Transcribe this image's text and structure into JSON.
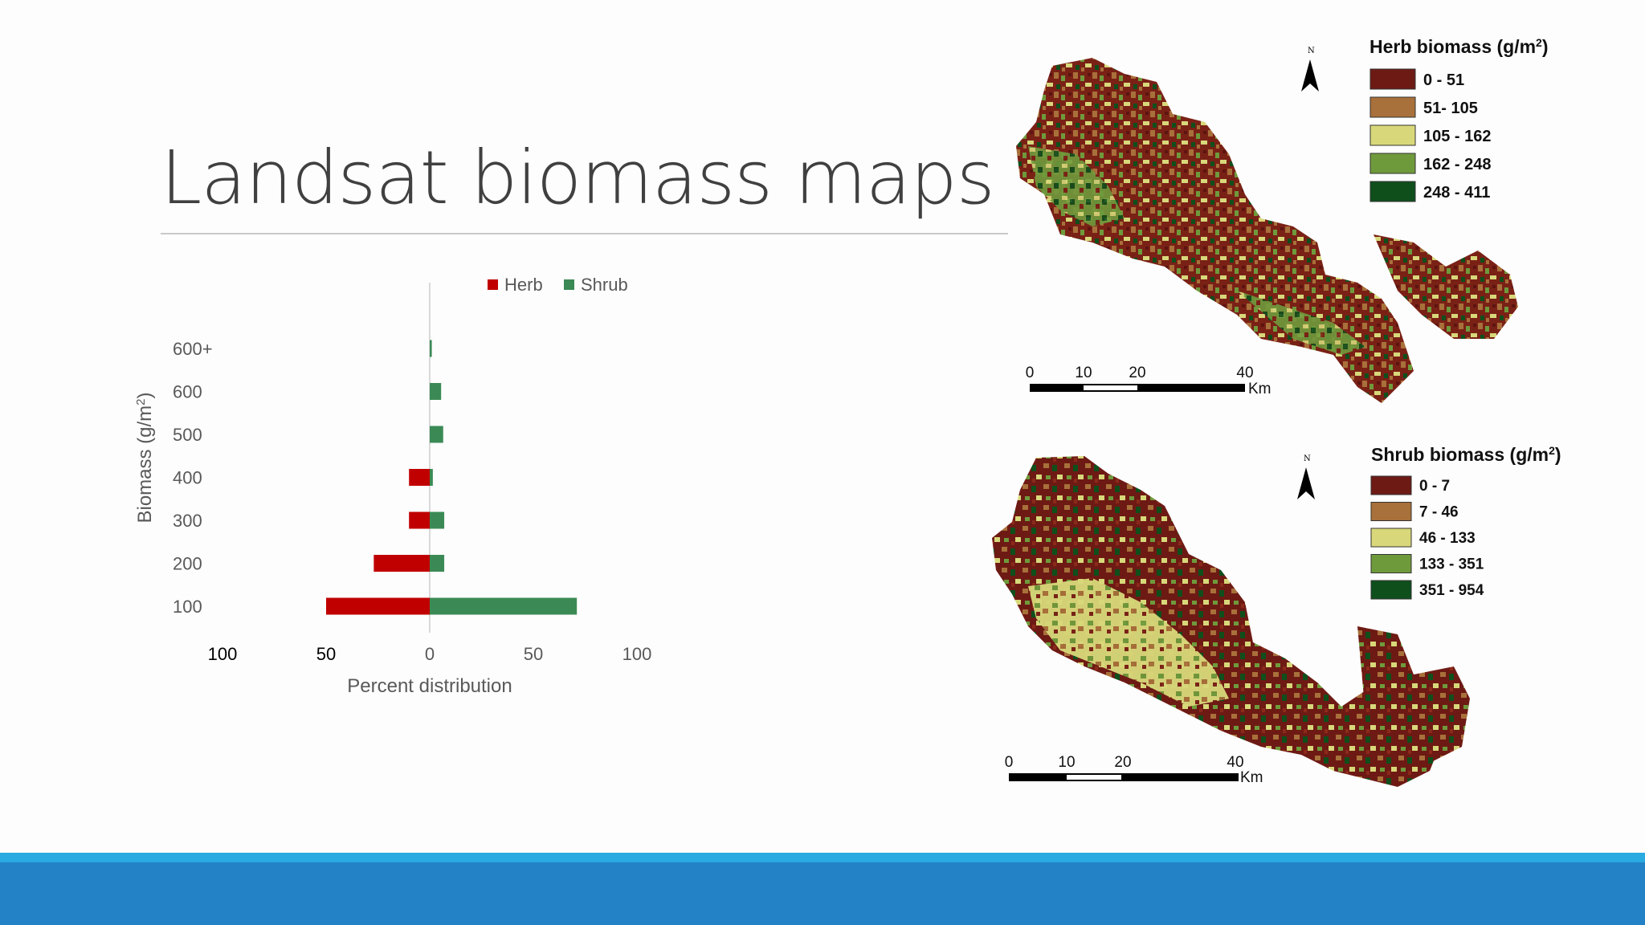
{
  "slide": {
    "title": "Landsat biomass maps",
    "colors": {
      "footer_light": "#29aae1",
      "footer_dark": "#2382c5",
      "herb": "#c00000",
      "shrub": "#3b8a55"
    }
  },
  "chart_data": {
    "type": "bar",
    "orientation": "horizontal-diverging",
    "categories": [
      "100",
      "200",
      "300",
      "400",
      "500",
      "600",
      "600+"
    ],
    "series": [
      {
        "name": "Herb",
        "color": "#c00000",
        "values": [
          50,
          27,
          10,
          10,
          0,
          0,
          0
        ]
      },
      {
        "name": "Shrub",
        "color": "#3b8a55",
        "values": [
          71,
          7,
          7,
          1.5,
          6.5,
          5.5,
          1
        ]
      }
    ],
    "xlabel": "Percent distribution",
    "ylabel": "Biomass (g/m",
    "ylabel_sup": "2",
    "ylabel_close": ")",
    "x_ticks": [
      "100",
      "50",
      "0",
      "50",
      "100"
    ],
    "xlim": [
      -100,
      100
    ],
    "legend_position": "top"
  },
  "maps": [
    {
      "legend_title": "Herb biomass (g/m",
      "legend_title_sup": "2",
      "legend_title_close": ")",
      "classes": [
        {
          "label": "0 - 51",
          "color": "#6e1a14"
        },
        {
          "label": "51- 105",
          "color": "#a8703a"
        },
        {
          "label": "105 - 162",
          "color": "#d8d87a"
        },
        {
          "label": "162 - 248",
          "color": "#6f9a3c"
        },
        {
          "label": "248 - 411",
          "color": "#0f4f1c"
        }
      ],
      "north": "N",
      "scale_labels": [
        "0",
        "10",
        "20",
        "40"
      ],
      "scale_unit": "Km"
    },
    {
      "legend_title": "Shrub biomass (g/m",
      "legend_title_sup": "2",
      "legend_title_close": ")",
      "classes": [
        {
          "label": "0 - 7",
          "color": "#6e1a14"
        },
        {
          "label": "7 - 46",
          "color": "#a8703a"
        },
        {
          "label": "46 - 133",
          "color": "#d8d87a"
        },
        {
          "label": "133 - 351",
          "color": "#6f9a3c"
        },
        {
          "label": "351 - 954",
          "color": "#0f4f1c"
        }
      ],
      "north": "N",
      "scale_labels": [
        "0",
        "10",
        "20",
        "40"
      ],
      "scale_unit": "Km"
    }
  ]
}
